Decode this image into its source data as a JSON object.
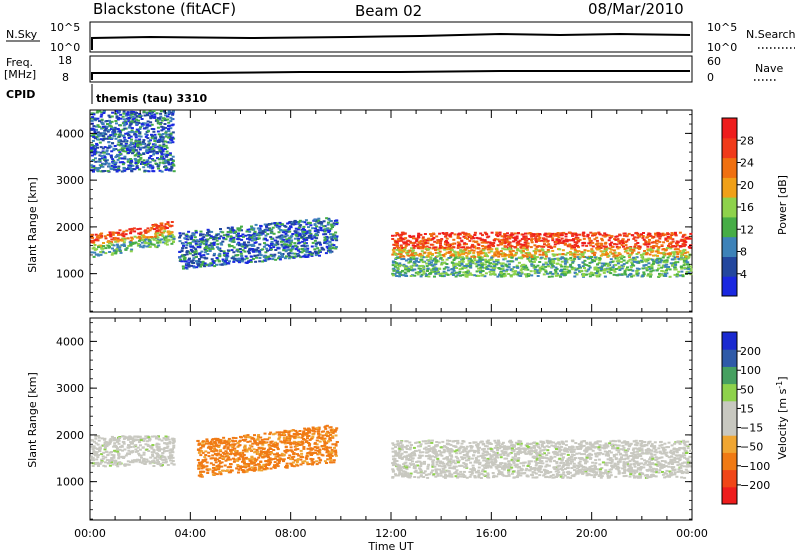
{
  "header": {
    "station": "Blackstone (fitACF)",
    "beam": "Beam 02",
    "date": "08/Mar/2010"
  },
  "noise_panel": {
    "left_label": "N.Sky",
    "left_ticks": [
      "10^5",
      "10^0"
    ],
    "right_label": "N.Search",
    "right_ticks": [
      "10^5",
      "10^0"
    ]
  },
  "freq_panel": {
    "left_label_1": "Freq.",
    "left_label_2": "[MHz]",
    "left_ticks": [
      "18",
      "8"
    ],
    "right_label": "Nave",
    "right_ticks": [
      "60",
      "0"
    ]
  },
  "cpid": {
    "label": "CPID",
    "value": "themis (tau) 3310"
  },
  "colors": {
    "power": [
      "#1a28e0",
      "#23479e",
      "#3d82b8",
      "#46ad46",
      "#8ed24b",
      "#f0a018",
      "#f07010",
      "#f03a1a",
      "#ee1d1d"
    ],
    "velocity": [
      "#ee1d1d",
      "#f04618",
      "#f07a14",
      "#f0a632",
      "#c8c8c0",
      "#c8c8c0",
      "#8ed24b",
      "#46a060",
      "#2f5aa8",
      "#1a2ad0"
    ]
  },
  "chart_data": [
    {
      "type": "heatmap",
      "title": "Power",
      "ylabel": "Slant Range [km]",
      "xlabel": "",
      "xlim_hours": [
        0,
        24
      ],
      "ylim_km": [
        180,
        4500
      ],
      "y_ticks": [
        "1000",
        "2000",
        "3000",
        "4000"
      ],
      "colorbar_label": "Power [dB]",
      "colorbar_ticks": [
        "4",
        "8",
        "12",
        "16",
        "20",
        "24",
        "28"
      ],
      "scatter_regions": [
        {
          "t0": 0.0,
          "t1": 3.3,
          "r0_km": 1350,
          "r1_km": 1850,
          "value": "strong (20-28 dB)"
        },
        {
          "t0": 3.5,
          "t1": 9.8,
          "r0_km": 1100,
          "r1_km": 1900,
          "value": "weak (4-16 dB)"
        },
        {
          "t0": 12.0,
          "t1": 23.9,
          "r0_km": 950,
          "r1_km": 1900,
          "value": "strong (20-28 dB)"
        },
        {
          "t0": 0.0,
          "t1": 3.3,
          "r0_km": 3200,
          "r1_km": 4500,
          "value": "weak (4-12 dB)"
        }
      ]
    },
    {
      "type": "heatmap",
      "title": "Velocity",
      "ylabel": "Slant Range [km]",
      "xlabel": "Time UT",
      "xlim_hours": [
        0,
        24
      ],
      "ylim_km": [
        180,
        4500
      ],
      "y_ticks": [
        "1000",
        "2000",
        "3000",
        "4000"
      ],
      "x_ticks": [
        "00:00",
        "04:00",
        "08:00",
        "12:00",
        "16:00",
        "20:00",
        "00:00"
      ],
      "colorbar_label": "Velocity [m s",
      "colorbar_label_sup": "-1",
      "colorbar_label_end": "]",
      "colorbar_ticks": [
        "200",
        "100",
        "50",
        "15",
        "−15",
        "−50",
        "−100",
        "−200"
      ],
      "scatter_regions": [
        {
          "t0": 0.0,
          "t1": 3.3,
          "r0_km": 1350,
          "r1_km": 2000,
          "value": "ground scatter (grey)"
        },
        {
          "t0": 4.2,
          "t1": 9.8,
          "r0_km": 1100,
          "r1_km": 1900,
          "value": "-50 to -15 m/s"
        },
        {
          "t0": 12.0,
          "t1": 23.9,
          "r0_km": 1100,
          "r1_km": 1900,
          "value": "ground scatter (grey)"
        }
      ]
    }
  ]
}
